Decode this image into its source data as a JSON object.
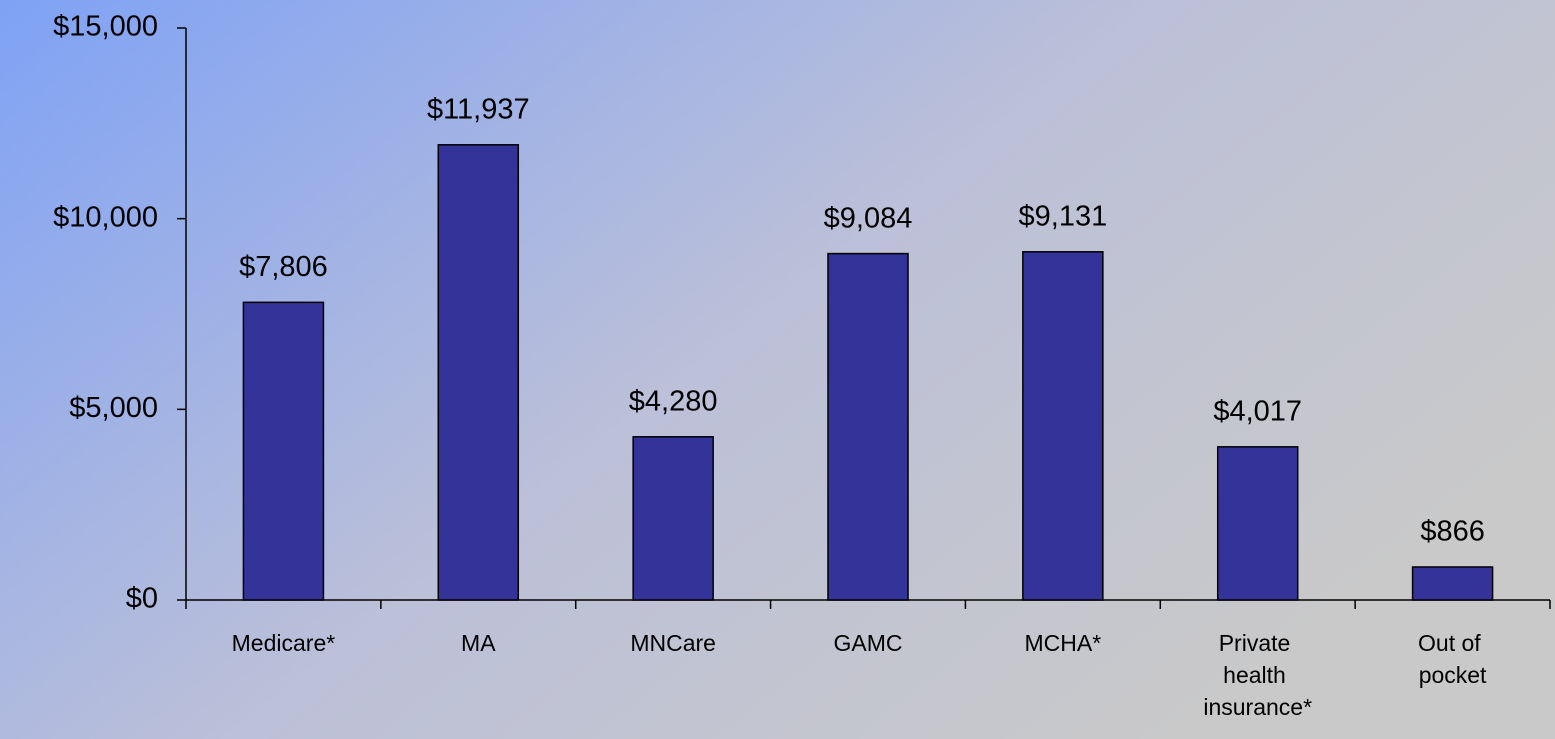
{
  "chart_data": {
    "type": "bar",
    "categories": [
      "Medicare*",
      "MA",
      "MNCare",
      "GAMC",
      "MCHA*",
      "Private health insurance*",
      "Out of pocket"
    ],
    "values": [
      7806,
      11937,
      4280,
      9084,
      9131,
      4017,
      866
    ],
    "value_labels": [
      "$7,806",
      "$11,937",
      "$4,280",
      "$9,084",
      "$9,131",
      "$4,017",
      "$866"
    ],
    "color": "#333399",
    "ylim": [
      0,
      15000
    ],
    "yticks": [
      {
        "value": 0,
        "label": "$0"
      },
      {
        "value": 5000,
        "label": "$5,000"
      },
      {
        "value": 10000,
        "label": "$10,000"
      },
      {
        "value": 15000,
        "label": "$15,000"
      }
    ]
  }
}
